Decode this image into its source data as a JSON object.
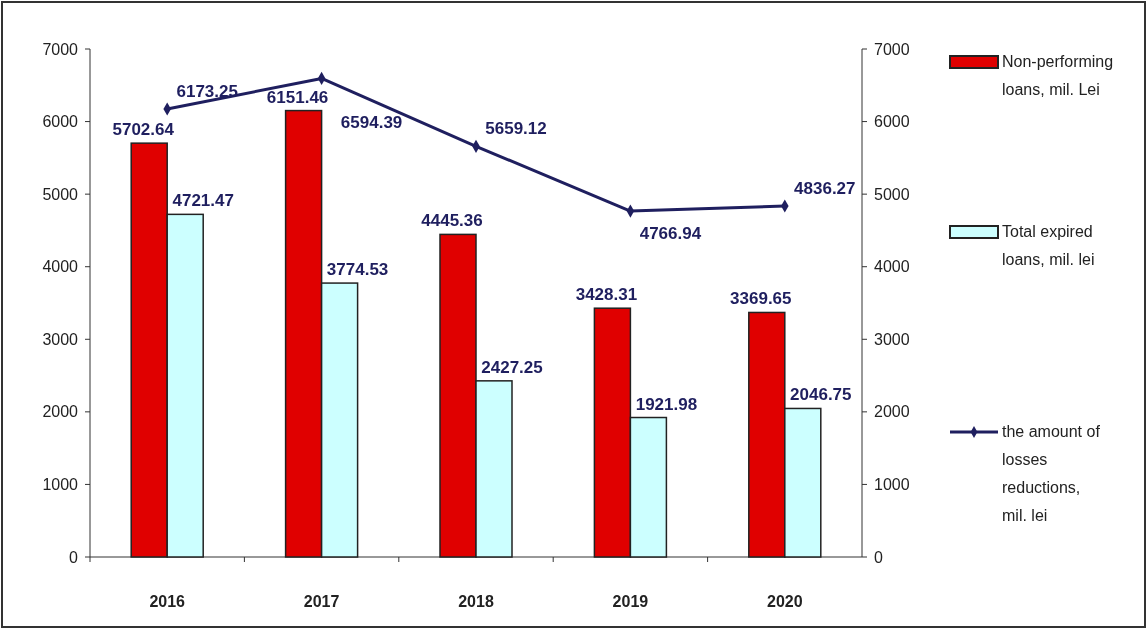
{
  "chart_data": {
    "type": "bar",
    "categories": [
      "2016",
      "2017",
      "2018",
      "2019",
      "2020"
    ],
    "series": [
      {
        "name": "Non-performing loans, mil. Lei",
        "color": "#e00000",
        "values": [
          5702.64,
          6151.46,
          4445.36,
          3428.31,
          3369.65
        ]
      },
      {
        "name": "Total expired loans, mil. lei",
        "color": "#ccffff",
        "values": [
          4721.47,
          3774.53,
          2427.25,
          1921.98,
          2046.75
        ]
      },
      {
        "name": "the amount of losses reductions, mil. lei",
        "color": "#1f1f5f",
        "type": "line",
        "axis": "y2",
        "values": [
          6173.25,
          6594.39,
          5659.12,
          4766.94,
          4836.27
        ]
      }
    ],
    "ylim": [
      0,
      7000
    ],
    "yticks": [
      0,
      1000,
      2000,
      3000,
      4000,
      5000,
      6000,
      7000
    ],
    "y2lim": [
      0,
      7000
    ],
    "y2ticks": [
      0,
      1000,
      2000,
      3000,
      4000,
      5000,
      6000,
      7000
    ],
    "data_labels": true,
    "legend": "right",
    "grid": false,
    "marker": "diamond",
    "line_style": "solid"
  }
}
